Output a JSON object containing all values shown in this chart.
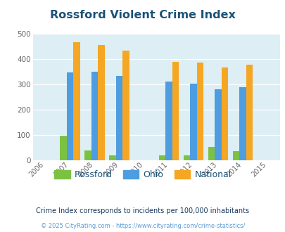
{
  "title": "Rossford Violent Crime Index",
  "all_years": [
    2006,
    2007,
    2008,
    2009,
    2010,
    2011,
    2012,
    2013,
    2014,
    2015
  ],
  "data_years": [
    2007,
    2008,
    2009,
    2011,
    2012,
    2013,
    2014
  ],
  "rossford": [
    97,
    38,
    20,
    20,
    20,
    52,
    35
  ],
  "ohio": [
    347,
    350,
    333,
    310,
    301,
    279,
    288
  ],
  "national": [
    467,
    455,
    433,
    387,
    386,
    365,
    377
  ],
  "rossford_color": "#7cc242",
  "ohio_color": "#4d9de0",
  "national_color": "#f5a623",
  "bg_color": "#ddeef5",
  "title_color": "#1a5276",
  "bar_width": 0.27,
  "ylim": [
    0,
    500
  ],
  "yticks": [
    0,
    100,
    200,
    300,
    400,
    500
  ],
  "subtitle": "Crime Index corresponds to incidents per 100,000 inhabitants",
  "footer": "© 2025 CityRating.com - https://www.cityrating.com/crime-statistics/",
  "footer_color": "#5b9bd5",
  "subtitle_color": "#1a3a5c",
  "legend_labels": [
    "Rossford",
    "Ohio",
    "National"
  ]
}
